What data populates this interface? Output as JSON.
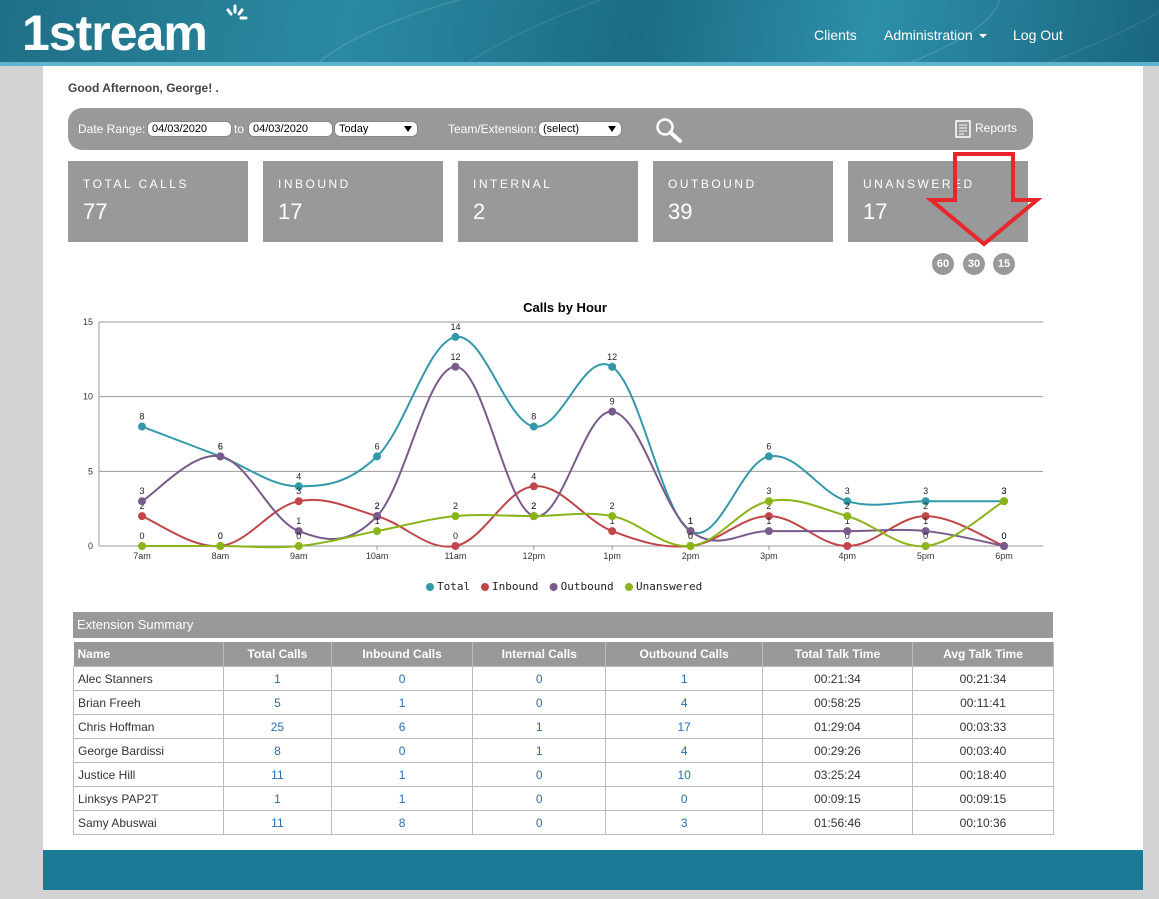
{
  "header": {
    "logo": "1stream",
    "nav": {
      "clients": "Clients",
      "administration": "Administration",
      "logout": "Log Out"
    }
  },
  "greeting": "Good Afternoon, George!  .",
  "filters": {
    "date_range_label": "Date Range:",
    "date_from": "04/03/2020",
    "to_label": "to",
    "date_to": "04/03/2020",
    "preset": "Today",
    "team_label": "Team/Extension:",
    "team_value": "(select)",
    "reports_label": "Reports"
  },
  "cards": [
    {
      "title": "TOTAL CALLS",
      "value": "77"
    },
    {
      "title": "INBOUND",
      "value": "17"
    },
    {
      "title": "INTERNAL",
      "value": "2"
    },
    {
      "title": "OUTBOUND",
      "value": "39"
    },
    {
      "title": "UNANSWERED",
      "value": "17"
    }
  ],
  "refresh_options": [
    "60",
    "30",
    "15"
  ],
  "colors": {
    "total": "#3399aa",
    "inbound": "#c0464a",
    "outbound": "#7a5a8a",
    "unanswered": "#8ab418",
    "annotation": "#e8262b"
  },
  "chart_data": {
    "type": "line",
    "title": "Calls by Hour",
    "categories": [
      "7am",
      "8am",
      "9am",
      "10am",
      "11am",
      "12pm",
      "1pm",
      "2pm",
      "3pm",
      "4pm",
      "5pm",
      "6pm"
    ],
    "ylim": [
      0,
      15
    ],
    "yticks": [
      0,
      5,
      10,
      15
    ],
    "grid": true,
    "legend": "bottom",
    "series": [
      {
        "name": "Total",
        "values": [
          8,
          6,
          4,
          6,
          14,
          8,
          12,
          1,
          6,
          3,
          3,
          3
        ]
      },
      {
        "name": "Inbound",
        "values": [
          2,
          0,
          3,
          2,
          0,
          4,
          1,
          0,
          2,
          0,
          2,
          0
        ]
      },
      {
        "name": "Outbound",
        "values": [
          3,
          6,
          1,
          2,
          12,
          2,
          9,
          1,
          1,
          1,
          1,
          0
        ]
      },
      {
        "name": "Unanswered",
        "values": [
          0,
          0,
          0,
          1,
          2,
          2,
          2,
          0,
          3,
          2,
          0,
          3
        ]
      }
    ]
  },
  "extension_summary": {
    "title": "Extension Summary",
    "columns": [
      "Name",
      "Total Calls",
      "Inbound Calls",
      "Internal Calls",
      "Outbound Calls",
      "Total Talk Time",
      "Avg Talk Time"
    ],
    "rows": [
      [
        "Alec Stanners",
        "1",
        "0",
        "0",
        "1",
        "00:21:34",
        "00:21:34"
      ],
      [
        "Brian Freeh",
        "5",
        "1",
        "0",
        "4",
        "00:58:25",
        "00:11:41"
      ],
      [
        "Chris Hoffman",
        "25",
        "6",
        "1",
        "17",
        "01:29:04",
        "00:03:33"
      ],
      [
        "George Bardissi",
        "8",
        "0",
        "1",
        "4",
        "00:29:26",
        "00:03:40"
      ],
      [
        "Justice Hill",
        "11",
        "1",
        "0",
        "10",
        "03:25:24",
        "00:18:40"
      ],
      [
        "Linksys PAP2T",
        "1",
        "1",
        "0",
        "0",
        "00:09:15",
        "00:09:15"
      ],
      [
        "Samy Abuswai",
        "11",
        "8",
        "0",
        "3",
        "01:56:46",
        "00:10:36"
      ]
    ]
  }
}
